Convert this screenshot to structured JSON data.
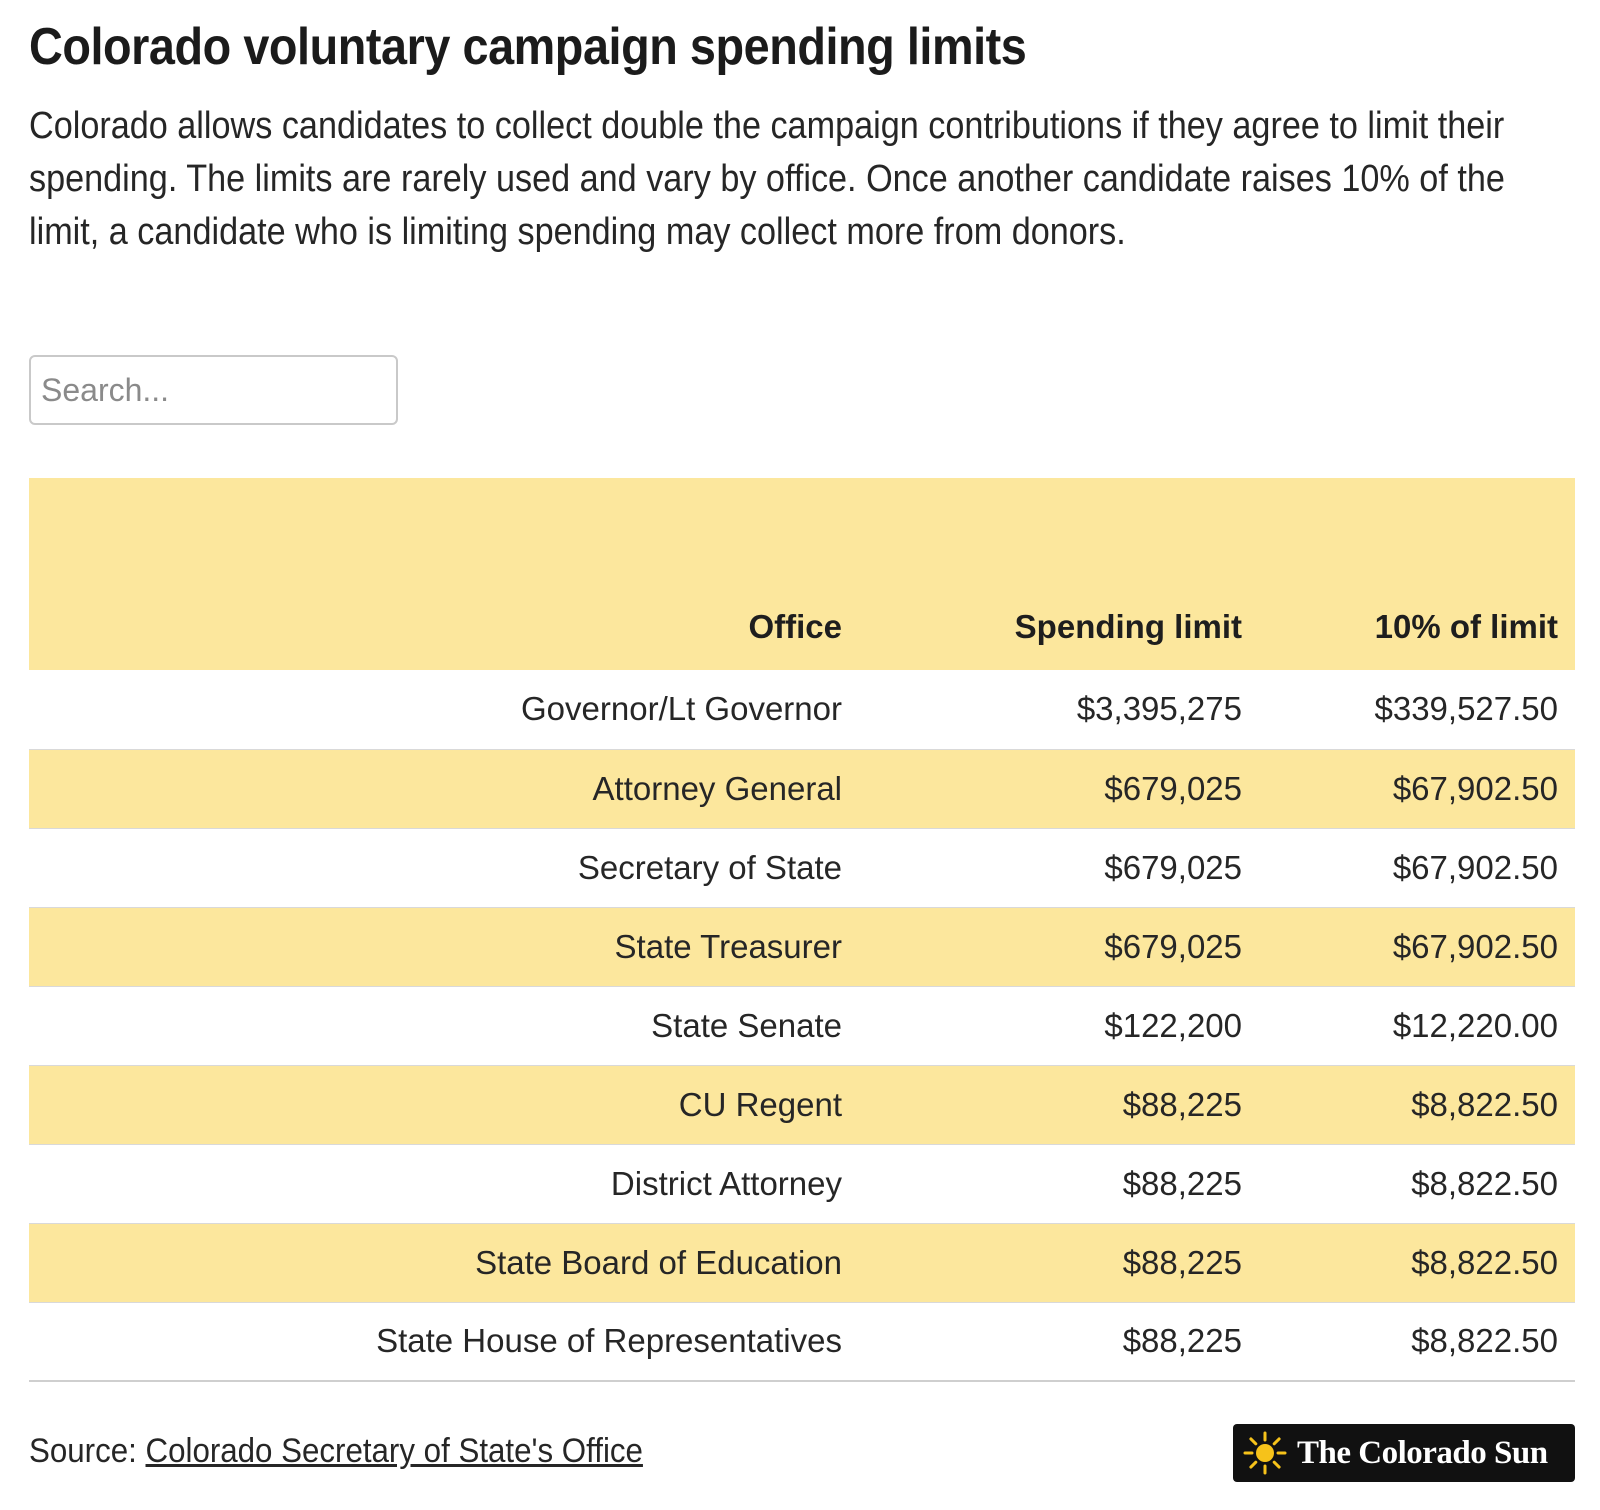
{
  "title": "Colorado voluntary campaign spending limits",
  "description": "Colorado allows candidates to collect double the campaign contributions if they agree to limit their spending. The limits are rarely used and vary by office. Once another candidate raises 10% of the limit, a candidate who is limiting spending may collect more from donors.",
  "search": {
    "placeholder": "Search...",
    "value": ""
  },
  "table": {
    "headers": [
      "Office",
      "Spending limit",
      "10% of limit"
    ],
    "rows": [
      [
        "Governor/Lt Governor",
        "$3,395,275",
        "$339,527.50"
      ],
      [
        "Attorney General",
        "$679,025",
        "$67,902.50"
      ],
      [
        "Secretary of State",
        "$679,025",
        "$67,902.50"
      ],
      [
        "State Treasurer",
        "$679,025",
        "$67,902.50"
      ],
      [
        "State Senate",
        "$122,200",
        "$12,220.00"
      ],
      [
        "CU Regent",
        "$88,225",
        "$8,822.50"
      ],
      [
        "District Attorney",
        "$88,225",
        "$8,822.50"
      ],
      [
        "State Board of Education",
        "$88,225",
        "$8,822.50"
      ],
      [
        "State House of Representatives",
        "$88,225",
        "$8,822.50"
      ]
    ]
  },
  "source": {
    "label": "Source:",
    "link_text": "Colorado Secretary of State's Office"
  },
  "logo": {
    "text": "The Colorado Sun",
    "icon": "sun-icon"
  },
  "colors": {
    "row_highlight": "#fce79d",
    "text": "#222222",
    "logo_background": "#111111",
    "sun": "#f6c21a"
  }
}
